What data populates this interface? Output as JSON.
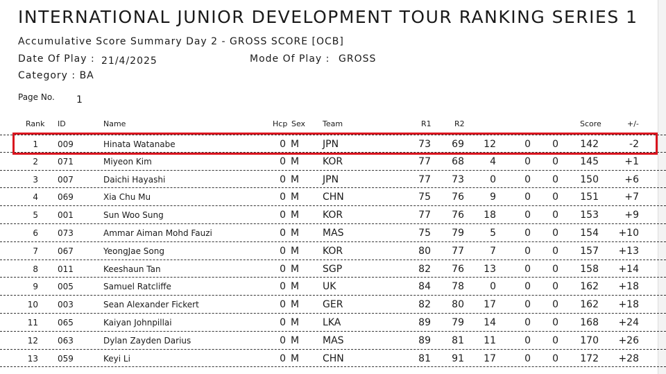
{
  "header": {
    "title": "INTERNATIONAL JUNIOR DEVELOPMENT TOUR RANKING SERIES 1",
    "subtitle": "Accumulative Score Summary Day 2 - GROSS SCORE  [OCB]",
    "date_label": "Date Of Play :",
    "date_value": "21/4/2025",
    "mode_label": "Mode Of Play :",
    "mode_value": "GROSS",
    "category": "Category : BA",
    "page_label": "Page No.",
    "page_value": "1"
  },
  "table": {
    "columns": {
      "rank": "Rank",
      "id": "ID",
      "name": "Name",
      "hcp": "Hcp",
      "sex": "Sex",
      "team": "Team",
      "r1": "R1",
      "r2": "R2",
      "score": "Score",
      "diff": "+/-"
    },
    "rows": [
      {
        "rank": "1",
        "id": "009",
        "name": "Hinata Watanabe",
        "hcp": "0",
        "sex": "M",
        "team": "JPN",
        "r1": "73",
        "r2": "69",
        "c3": "12",
        "c4": "0",
        "c5": "0",
        "score": "142",
        "diff": "-2"
      },
      {
        "rank": "2",
        "id": "071",
        "name": "Miyeon Kim",
        "hcp": "0",
        "sex": "M",
        "team": "KOR",
        "r1": "77",
        "r2": "68",
        "c3": "4",
        "c4": "0",
        "c5": "0",
        "score": "145",
        "diff": "+1"
      },
      {
        "rank": "3",
        "id": "007",
        "name": "Daichi Hayashi",
        "hcp": "0",
        "sex": "M",
        "team": "JPN",
        "r1": "77",
        "r2": "73",
        "c3": "0",
        "c4": "0",
        "c5": "0",
        "score": "150",
        "diff": "+6"
      },
      {
        "rank": "4",
        "id": "069",
        "name": "Xia Chu Mu",
        "hcp": "0",
        "sex": "M",
        "team": "CHN",
        "r1": "75",
        "r2": "76",
        "c3": "9",
        "c4": "0",
        "c5": "0",
        "score": "151",
        "diff": "+7"
      },
      {
        "rank": "5",
        "id": "001",
        "name": "Sun Woo Sung",
        "hcp": "0",
        "sex": "M",
        "team": "KOR",
        "r1": "77",
        "r2": "76",
        "c3": "18",
        "c4": "0",
        "c5": "0",
        "score": "153",
        "diff": "+9"
      },
      {
        "rank": "6",
        "id": "073",
        "name": "Ammar Aiman Mohd Fauzi",
        "hcp": "0",
        "sex": "M",
        "team": "MAS",
        "r1": "75",
        "r2": "79",
        "c3": "5",
        "c4": "0",
        "c5": "0",
        "score": "154",
        "diff": "+10"
      },
      {
        "rank": "7",
        "id": "067",
        "name": "YeongJae Song",
        "hcp": "0",
        "sex": "M",
        "team": "KOR",
        "r1": "80",
        "r2": "77",
        "c3": "7",
        "c4": "0",
        "c5": "0",
        "score": "157",
        "diff": "+13"
      },
      {
        "rank": "8",
        "id": "011",
        "name": "Keeshaun Tan",
        "hcp": "0",
        "sex": "M",
        "team": "SGP",
        "r1": "82",
        "r2": "76",
        "c3": "13",
        "c4": "0",
        "c5": "0",
        "score": "158",
        "diff": "+14"
      },
      {
        "rank": "9",
        "id": "005",
        "name": "Samuel Ratcliffe",
        "hcp": "0",
        "sex": "M",
        "team": "UK",
        "r1": "84",
        "r2": "78",
        "c3": "0",
        "c4": "0",
        "c5": "0",
        "score": "162",
        "diff": "+18"
      },
      {
        "rank": "10",
        "id": "003",
        "name": "Sean Alexander Fickert",
        "hcp": "0",
        "sex": "M",
        "team": "GER",
        "r1": "82",
        "r2": "80",
        "c3": "17",
        "c4": "0",
        "c5": "0",
        "score": "162",
        "diff": "+18"
      },
      {
        "rank": "11",
        "id": "065",
        "name": "Kaiyan Johnpillai",
        "hcp": "0",
        "sex": "M",
        "team": "LKA",
        "r1": "89",
        "r2": "79",
        "c3": "14",
        "c4": "0",
        "c5": "0",
        "score": "168",
        "diff": "+24"
      },
      {
        "rank": "12",
        "id": "063",
        "name": "Dylan Zayden Darius",
        "hcp": "0",
        "sex": "M",
        "team": "MAS",
        "r1": "89",
        "r2": "81",
        "c3": "11",
        "c4": "0",
        "c5": "0",
        "score": "170",
        "diff": "+26"
      },
      {
        "rank": "13",
        "id": "059",
        "name": "Keyi Li",
        "hcp": "0",
        "sex": "M",
        "team": "CHN",
        "r1": "81",
        "r2": "91",
        "c3": "17",
        "c4": "0",
        "c5": "0",
        "score": "172",
        "diff": "+28"
      }
    ]
  },
  "highlight": {
    "row_rank": "1",
    "color": "#d9141e"
  }
}
